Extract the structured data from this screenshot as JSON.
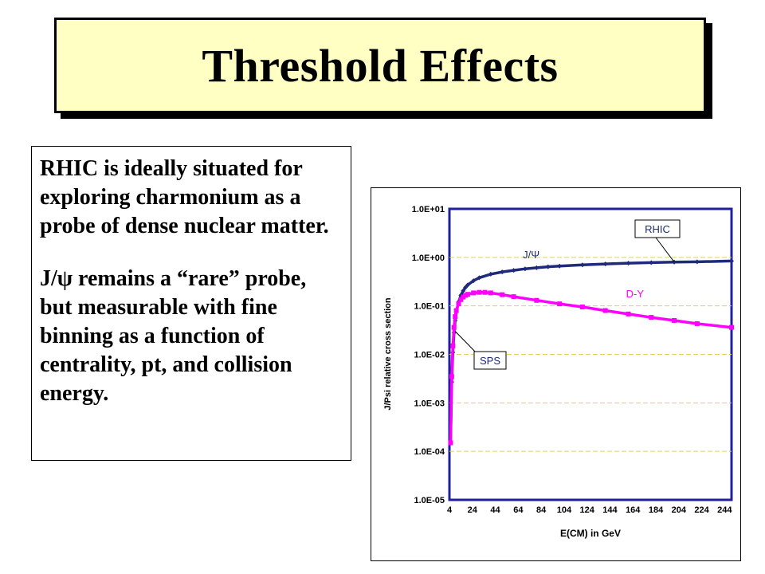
{
  "slide": {
    "title": "Threshold Effects",
    "paragraphs": [
      "RHIC is ideally situated for exploring charmonium as a probe of dense nuclear matter.",
      "J/ψ remains a “rare” probe, but measurable with fine binning as a function of centrality, pt, and collision energy."
    ]
  },
  "chart_data": {
    "type": "scatter",
    "title": "",
    "xlabel": "E(CM) in GeV",
    "ylabel": "J/Psi relative cross section",
    "xlim": [
      4,
      250
    ],
    "ylim": [
      1e-05,
      10
    ],
    "yscale": "log",
    "grid": "horizontal dashed",
    "x_ticks": [
      "4",
      "24",
      "44",
      "64",
      "84",
      "104",
      "124",
      "144",
      "164",
      "184",
      "204",
      "224",
      "244"
    ],
    "y_ticks": [
      "1.0E+01",
      "1.0E+00",
      "1.0E-01",
      "1.0E-02",
      "1.0E-03",
      "1.0E-04",
      "1.0E-05"
    ],
    "series": [
      {
        "name": "J/Ψ",
        "color": "#1f2a7a",
        "points": [
          [
            5,
            0.00015
          ],
          [
            6,
            0.0027
          ],
          [
            7,
            0.011
          ],
          [
            8,
            0.028
          ],
          [
            9,
            0.05
          ],
          [
            10,
            0.075
          ],
          [
            12,
            0.12
          ],
          [
            14,
            0.165
          ],
          [
            16,
            0.205
          ],
          [
            18,
            0.24
          ],
          [
            20,
            0.27
          ],
          [
            25,
            0.33
          ],
          [
            30,
            0.38
          ],
          [
            40,
            0.45
          ],
          [
            50,
            0.5
          ],
          [
            60,
            0.54
          ],
          [
            70,
            0.58
          ],
          [
            80,
            0.61
          ],
          [
            90,
            0.64
          ],
          [
            100,
            0.66
          ],
          [
            120,
            0.7
          ],
          [
            140,
            0.73
          ],
          [
            160,
            0.76
          ],
          [
            180,
            0.78
          ],
          [
            200,
            0.8
          ],
          [
            220,
            0.81
          ],
          [
            250,
            0.84
          ]
        ]
      },
      {
        "name": "D-Y",
        "color": "#ff00ff",
        "points": [
          [
            5,
            0.00015
          ],
          [
            6,
            0.0035
          ],
          [
            7,
            0.015
          ],
          [
            8,
            0.036
          ],
          [
            9,
            0.06
          ],
          [
            10,
            0.08
          ],
          [
            12,
            0.11
          ],
          [
            14,
            0.135
          ],
          [
            16,
            0.152
          ],
          [
            18,
            0.165
          ],
          [
            20,
            0.173
          ],
          [
            25,
            0.185
          ],
          [
            30,
            0.19
          ],
          [
            35,
            0.19
          ],
          [
            40,
            0.185
          ],
          [
            50,
            0.17
          ],
          [
            60,
            0.155
          ],
          [
            80,
            0.13
          ],
          [
            100,
            0.11
          ],
          [
            120,
            0.095
          ],
          [
            140,
            0.08
          ],
          [
            160,
            0.068
          ],
          [
            180,
            0.058
          ],
          [
            200,
            0.05
          ],
          [
            220,
            0.043
          ],
          [
            250,
            0.036
          ]
        ]
      }
    ],
    "annotations": [
      {
        "text": "RHIC",
        "x": 200,
        "y": 0.8
      },
      {
        "text": "SPS",
        "x": 9,
        "y": 0.03
      }
    ]
  }
}
